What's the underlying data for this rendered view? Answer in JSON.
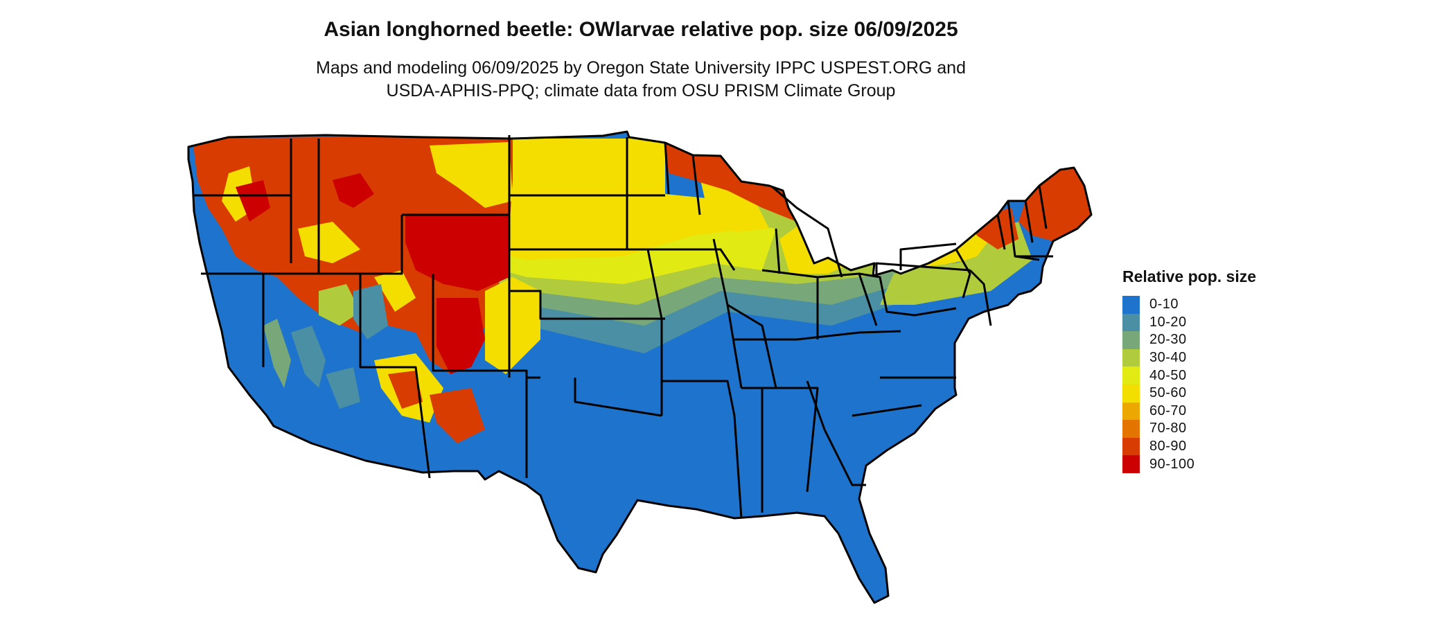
{
  "title": "Asian longhorned beetle: OWlarvae relative pop. size 06/09/2025",
  "subtitle": {
    "line1": "Maps and modeling 06/09/2025 by Oregon State University IPPC USPEST.ORG and",
    "line2": "USDA-APHIS-PPQ; climate data from OSU PRISM Climate Group"
  },
  "legend": {
    "title": "Relative pop. size",
    "items": [
      {
        "label": "0-10",
        "color": "#1e74cc"
      },
      {
        "label": "10-20",
        "color": "#4a8fa3"
      },
      {
        "label": "20-30",
        "color": "#78a87a"
      },
      {
        "label": "30-40",
        "color": "#b0cc3c"
      },
      {
        "label": "40-50",
        "color": "#e2ea14"
      },
      {
        "label": "50-60",
        "color": "#f4de00"
      },
      {
        "label": "60-70",
        "color": "#eca800"
      },
      {
        "label": "70-80",
        "color": "#e47400"
      },
      {
        "label": "80-90",
        "color": "#d83c00"
      },
      {
        "label": "90-100",
        "color": "#cc0000"
      }
    ]
  }
}
